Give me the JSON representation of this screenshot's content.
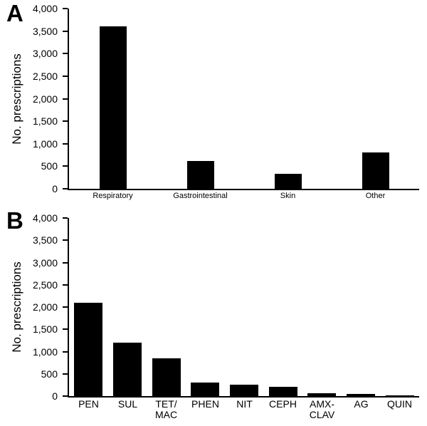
{
  "page": {
    "background": "#ffffff",
    "text_color": "#000000"
  },
  "chart_data": [
    {
      "type": "bar",
      "panel": "A",
      "title": "",
      "xlabel": "",
      "ylabel": "No. prescriptions",
      "ylim": [
        0,
        4000
      ],
      "ytick_interval": 500,
      "yticklabels": [
        "4,000",
        "3,500",
        "3,000",
        "2,500",
        "2,000",
        "1,500",
        "1,000",
        "500",
        "0"
      ],
      "categories": [
        "Respiratory",
        "Gastrointestinal",
        "Skin",
        "Other"
      ],
      "values": [
        3600,
        620,
        330,
        800
      ],
      "bar_color": "#000000",
      "grid": false,
      "legend": "none"
    },
    {
      "type": "bar",
      "panel": "B",
      "title": "",
      "xlabel": "",
      "ylabel": "No. prescriptions",
      "ylim": [
        0,
        4000
      ],
      "ytick_interval": 500,
      "yticklabels": [
        "4,000",
        "3,500",
        "3,000",
        "2,500",
        "2,000",
        "1,500",
        "1,000",
        "500",
        "0"
      ],
      "categories": [
        "PEN",
        "SUL",
        "TET/\nMAC",
        "PHEN",
        "NIT",
        "CEPH",
        "AMX-\nCLAV",
        "AG",
        "QUIN"
      ],
      "values": [
        2100,
        1200,
        850,
        300,
        250,
        200,
        70,
        40,
        20
      ],
      "bar_color": "#000000",
      "grid": false,
      "legend": "none"
    }
  ]
}
